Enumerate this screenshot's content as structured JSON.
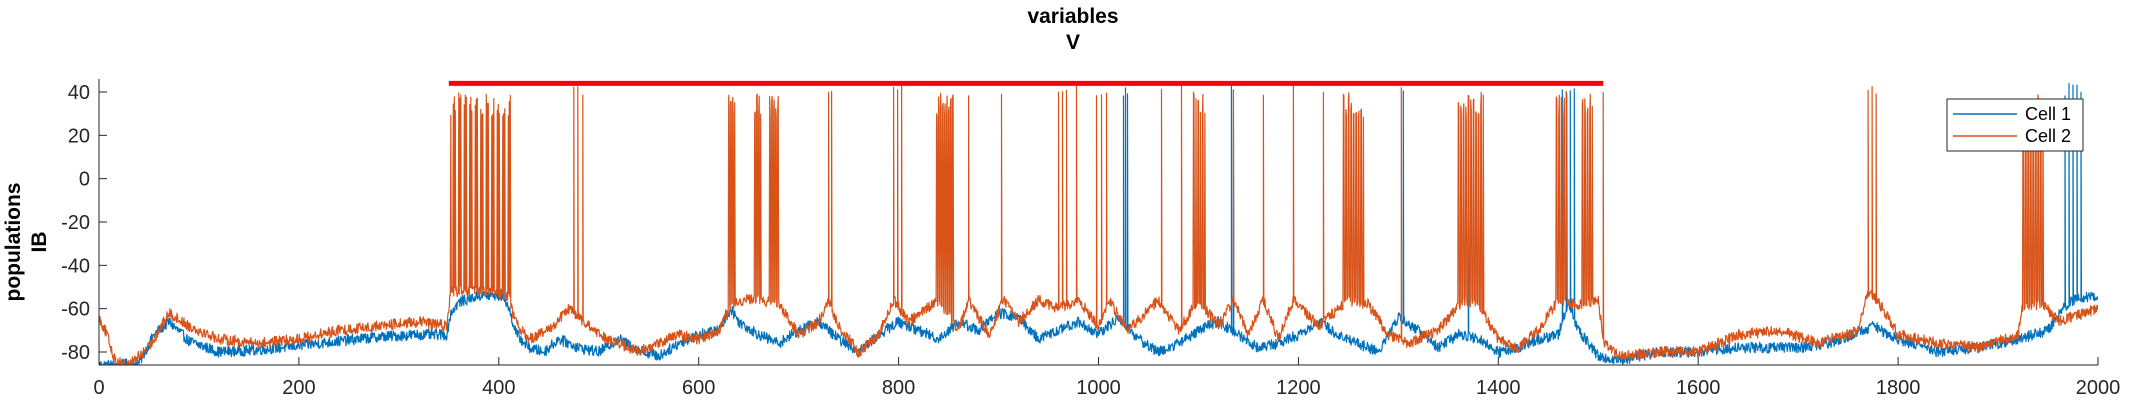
{
  "chart_data": {
    "type": "line",
    "title": [
      "variables",
      "V"
    ],
    "ylabel": [
      "populations",
      "IB"
    ],
    "xlim": [
      0,
      2000
    ],
    "ylim": [
      -86,
      46
    ],
    "xticks": [
      0,
      200,
      400,
      600,
      800,
      1000,
      1200,
      1400,
      1600,
      1800,
      2000
    ],
    "yticks": [
      -80,
      -60,
      -40,
      -20,
      0,
      20,
      40
    ],
    "grid": false,
    "legend_position": "top-right",
    "series": [
      {
        "name": "Cell 1",
        "color": "#0072BD",
        "baseline": [
          [
            0,
            -86
          ],
          [
            20,
            -86
          ],
          [
            40,
            -85
          ],
          [
            55,
            -72
          ],
          [
            70,
            -66
          ],
          [
            90,
            -75
          ],
          [
            120,
            -80
          ],
          [
            160,
            -79
          ],
          [
            200,
            -77
          ],
          [
            240,
            -75
          ],
          [
            280,
            -73
          ],
          [
            320,
            -72
          ],
          [
            348,
            -72
          ],
          [
            352,
            -62
          ],
          [
            360,
            -57
          ],
          [
            380,
            -54
          ],
          [
            405,
            -54
          ],
          [
            410,
            -60
          ],
          [
            418,
            -72
          ],
          [
            430,
            -78
          ],
          [
            445,
            -80
          ],
          [
            460,
            -74
          ],
          [
            480,
            -78
          ],
          [
            500,
            -80
          ],
          [
            520,
            -74
          ],
          [
            540,
            -79
          ],
          [
            560,
            -82
          ],
          [
            580,
            -76
          ],
          [
            600,
            -72
          ],
          [
            620,
            -70
          ],
          [
            632,
            -60
          ],
          [
            640,
            -66
          ],
          [
            660,
            -72
          ],
          [
            680,
            -76
          ],
          [
            700,
            -70
          ],
          [
            720,
            -66
          ],
          [
            740,
            -74
          ],
          [
            760,
            -80
          ],
          [
            780,
            -72
          ],
          [
            800,
            -66
          ],
          [
            820,
            -70
          ],
          [
            840,
            -74
          ],
          [
            860,
            -66
          ],
          [
            880,
            -70
          ],
          [
            900,
            -62
          ],
          [
            920,
            -64
          ],
          [
            940,
            -74
          ],
          [
            960,
            -70
          ],
          [
            980,
            -66
          ],
          [
            1000,
            -72
          ],
          [
            1020,
            -64
          ],
          [
            1040,
            -74
          ],
          [
            1060,
            -80
          ],
          [
            1080,
            -76
          ],
          [
            1100,
            -70
          ],
          [
            1120,
            -66
          ],
          [
            1140,
            -72
          ],
          [
            1160,
            -78
          ],
          [
            1180,
            -76
          ],
          [
            1200,
            -72
          ],
          [
            1220,
            -66
          ],
          [
            1240,
            -72
          ],
          [
            1260,
            -76
          ],
          [
            1280,
            -80
          ],
          [
            1300,
            -64
          ],
          [
            1320,
            -70
          ],
          [
            1340,
            -78
          ],
          [
            1360,
            -72
          ],
          [
            1380,
            -74
          ],
          [
            1400,
            -80
          ],
          [
            1420,
            -78
          ],
          [
            1440,
            -74
          ],
          [
            1460,
            -72
          ],
          [
            1470,
            -57
          ],
          [
            1480,
            -70
          ],
          [
            1500,
            -82
          ],
          [
            1520,
            -84
          ],
          [
            1560,
            -80
          ],
          [
            1600,
            -80
          ],
          [
            1640,
            -78
          ],
          [
            1700,
            -78
          ],
          [
            1740,
            -75
          ],
          [
            1775,
            -68
          ],
          [
            1800,
            -74
          ],
          [
            1840,
            -80
          ],
          [
            1880,
            -78
          ],
          [
            1920,
            -74
          ],
          [
            1950,
            -70
          ],
          [
            1965,
            -60
          ],
          [
            1975,
            -56
          ],
          [
            2000,
            -54
          ]
        ],
        "spikes": [
          1025,
          1027,
          1029,
          1133,
          1135,
          1305,
          1370,
          1464,
          1468,
          1472,
          1476,
          1967,
          1971,
          1975,
          1979,
          1983
        ],
        "bursts": []
      },
      {
        "name": "Cell 2",
        "color": "#D95319",
        "baseline": [
          [
            0,
            -64
          ],
          [
            8,
            -72
          ],
          [
            16,
            -84
          ],
          [
            30,
            -86
          ],
          [
            50,
            -78
          ],
          [
            70,
            -62
          ],
          [
            90,
            -68
          ],
          [
            120,
            -74
          ],
          [
            160,
            -76
          ],
          [
            200,
            -74
          ],
          [
            240,
            -70
          ],
          [
            280,
            -68
          ],
          [
            320,
            -66
          ],
          [
            348,
            -68
          ],
          [
            352,
            -52
          ],
          [
            380,
            -52
          ],
          [
            410,
            -54
          ],
          [
            416,
            -66
          ],
          [
            430,
            -74
          ],
          [
            450,
            -70
          ],
          [
            470,
            -60
          ],
          [
            480,
            -64
          ],
          [
            500,
            -72
          ],
          [
            520,
            -76
          ],
          [
            540,
            -80
          ],
          [
            560,
            -76
          ],
          [
            580,
            -72
          ],
          [
            600,
            -74
          ],
          [
            620,
            -70
          ],
          [
            630,
            -60
          ],
          [
            640,
            -56
          ],
          [
            660,
            -56
          ],
          [
            680,
            -58
          ],
          [
            700,
            -72
          ],
          [
            720,
            -66
          ],
          [
            730,
            -56
          ],
          [
            740,
            -68
          ],
          [
            760,
            -80
          ],
          [
            780,
            -72
          ],
          [
            795,
            -56
          ],
          [
            810,
            -66
          ],
          [
            840,
            -56
          ],
          [
            860,
            -70
          ],
          [
            870,
            -56
          ],
          [
            890,
            -72
          ],
          [
            905,
            -56
          ],
          [
            920,
            -66
          ],
          [
            940,
            -56
          ],
          [
            960,
            -60
          ],
          [
            980,
            -56
          ],
          [
            1000,
            -68
          ],
          [
            1010,
            -56
          ],
          [
            1030,
            -70
          ],
          [
            1060,
            -56
          ],
          [
            1080,
            -70
          ],
          [
            1100,
            -56
          ],
          [
            1120,
            -68
          ],
          [
            1135,
            -56
          ],
          [
            1150,
            -72
          ],
          [
            1165,
            -56
          ],
          [
            1180,
            -74
          ],
          [
            1195,
            -56
          ],
          [
            1220,
            -68
          ],
          [
            1250,
            -56
          ],
          [
            1270,
            -58
          ],
          [
            1290,
            -72
          ],
          [
            1310,
            -76
          ],
          [
            1340,
            -70
          ],
          [
            1365,
            -56
          ],
          [
            1380,
            -58
          ],
          [
            1400,
            -74
          ],
          [
            1420,
            -78
          ],
          [
            1440,
            -70
          ],
          [
            1460,
            -56
          ],
          [
            1480,
            -58
          ],
          [
            1500,
            -56
          ],
          [
            1506,
            -76
          ],
          [
            1520,
            -82
          ],
          [
            1560,
            -80
          ],
          [
            1600,
            -80
          ],
          [
            1640,
            -72
          ],
          [
            1680,
            -70
          ],
          [
            1720,
            -76
          ],
          [
            1760,
            -70
          ],
          [
            1770,
            -52
          ],
          [
            1785,
            -60
          ],
          [
            1800,
            -72
          ],
          [
            1840,
            -76
          ],
          [
            1880,
            -78
          ],
          [
            1920,
            -72
          ],
          [
            1925,
            -58
          ],
          [
            1945,
            -58
          ],
          [
            1960,
            -66
          ],
          [
            2000,
            -60
          ]
        ],
        "spikes": [
          475,
          479,
          484,
          730,
          733,
          795,
          799,
          803,
          870,
          903,
          960,
          964,
          968,
          978,
          998,
          1003,
          1008,
          1063,
          1083,
          1135,
          1165,
          1195,
          1225,
          1303,
          1505,
          1770,
          1774,
          1778
        ],
        "bursts": [
          [
            352,
            412,
            1.1
          ],
          [
            630,
            636,
            2.0
          ],
          [
            656,
            662,
            2.0
          ],
          [
            671,
            680,
            2.0
          ],
          [
            838,
            855,
            2.0
          ],
          [
            1095,
            1108,
            2.2
          ],
          [
            1245,
            1265,
            2.5
          ],
          [
            1360,
            1385,
            2.5
          ],
          [
            1458,
            1470,
            2.5
          ],
          [
            1484,
            1494,
            2.5
          ],
          [
            1925,
            1945,
            2.5
          ]
        ]
      }
    ],
    "overlay": {
      "color": "#FF0000",
      "x_start": 350,
      "x_end": 1505,
      "y": 44
    }
  }
}
